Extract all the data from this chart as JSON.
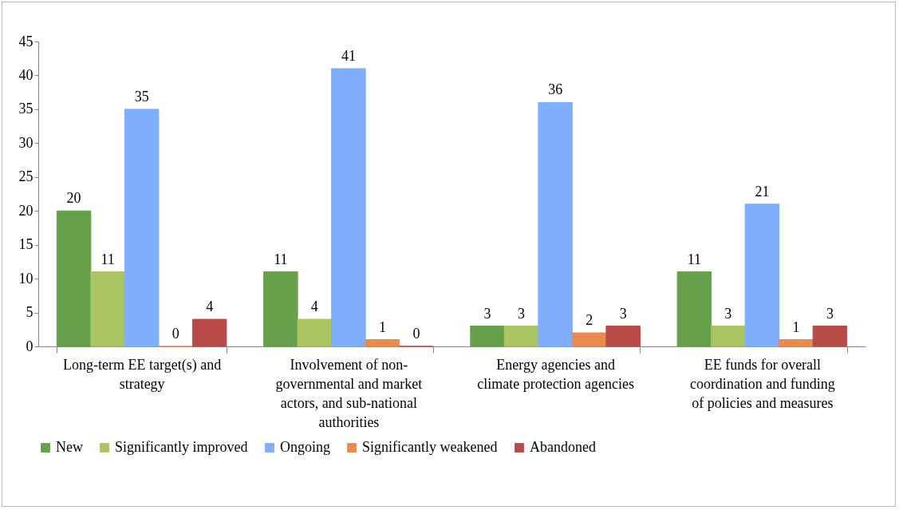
{
  "chart_data": {
    "type": "bar",
    "categories": [
      "Long-term EE target(s) and strategy",
      "Involvement of non-governmental and market actors, and sub-national authorities",
      "Energy agencies and climate protection agencies",
      "EE funds for overall coordination and funding of policies and measures"
    ],
    "series": [
      {
        "name": "New",
        "color": "#67a04a",
        "values": [
          20,
          11,
          3,
          11
        ]
      },
      {
        "name": "Significantly improved",
        "color": "#a9c461",
        "values": [
          11,
          4,
          3,
          3
        ]
      },
      {
        "name": "Ongoing",
        "color": "#7eaefd",
        "values": [
          35,
          41,
          36,
          21
        ]
      },
      {
        "name": "Significantly weakened",
        "color": "#ea8a4c",
        "values": [
          0,
          1,
          2,
          1
        ]
      },
      {
        "name": "Abandoned",
        "color": "#b94a48",
        "values": [
          4,
          0,
          3,
          3
        ]
      }
    ],
    "ylim": [
      0,
      45
    ],
    "yticks": [
      0,
      5,
      10,
      15,
      20,
      25,
      30,
      35,
      40,
      45
    ],
    "data_labels": true,
    "legend": "bottom"
  }
}
